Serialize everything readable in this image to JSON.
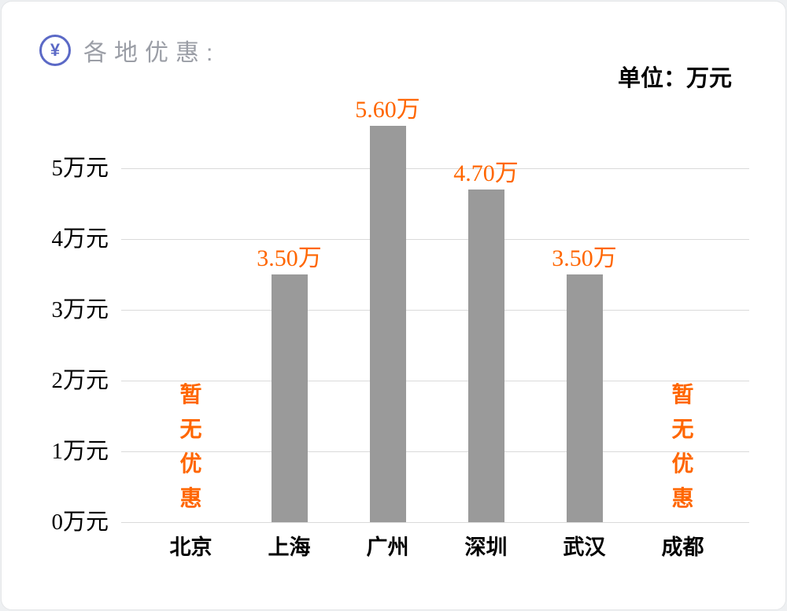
{
  "header": {
    "icon_glyph": "¥",
    "title": "各地优惠:",
    "unit_label": "单位：万元"
  },
  "chart_data": {
    "type": "bar",
    "title": "各地优惠",
    "categories": [
      "北京",
      "上海",
      "广州",
      "深圳",
      "武汉",
      "成都"
    ],
    "values": [
      null,
      3.5,
      5.6,
      4.7,
      3.5,
      null
    ],
    "bar_value_labels": [
      "",
      "3.50万",
      "5.60万",
      "4.70万",
      "3.50万",
      ""
    ],
    "no_data_label": "暂无优惠",
    "y_ticks": [
      0,
      1,
      2,
      3,
      4,
      5
    ],
    "y_tick_labels": [
      "0万元",
      "1万元",
      "2万元",
      "3万元",
      "4万元",
      "5万元"
    ],
    "ylim": [
      0,
      6
    ],
    "unit": "万元",
    "grid": true,
    "legend": false,
    "colors": {
      "bar": "#9a9a9a",
      "value_label": "#ff6600",
      "grid_line": "#dadada",
      "axis_text": "#000000",
      "title_text": "#9b9ea6",
      "icon_accent": "#5b69c6"
    }
  }
}
